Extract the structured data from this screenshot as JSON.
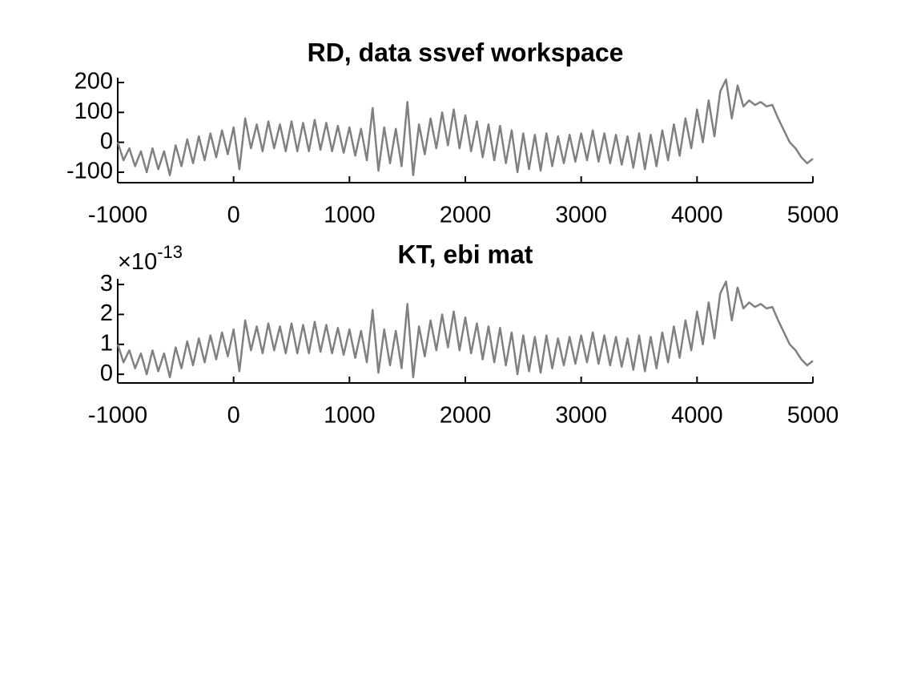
{
  "chart_data": [
    {
      "type": "line",
      "title": "RD, data ssvef workspace",
      "color": "#808080",
      "x": [
        -1000,
        -950,
        -900,
        -850,
        -800,
        -750,
        -700,
        -650,
        -600,
        -550,
        -500,
        -450,
        -400,
        -350,
        -300,
        -250,
        -200,
        -150,
        -100,
        -50,
        0,
        50,
        100,
        150,
        200,
        250,
        300,
        350,
        400,
        450,
        500,
        550,
        600,
        650,
        700,
        750,
        800,
        850,
        900,
        950,
        1000,
        1050,
        1100,
        1150,
        1200,
        1250,
        1300,
        1350,
        1400,
        1450,
        1500,
        1550,
        1600,
        1650,
        1700,
        1750,
        1800,
        1850,
        1900,
        1950,
        2000,
        2050,
        2100,
        2150,
        2200,
        2250,
        2300,
        2350,
        2400,
        2450,
        2500,
        2550,
        2600,
        2650,
        2700,
        2750,
        2800,
        2850,
        2900,
        2950,
        3000,
        3050,
        3100,
        3150,
        3200,
        3250,
        3300,
        3350,
        3400,
        3450,
        3500,
        3550,
        3600,
        3650,
        3700,
        3750,
        3800,
        3850,
        3900,
        3950,
        4000,
        4050,
        4100,
        4150,
        4200,
        4250,
        4300,
        4350,
        4400,
        4450,
        4500,
        4550,
        4600,
        4650,
        4700,
        4750,
        4800,
        4850,
        4900,
        4950,
        5000
      ],
      "values": [
        0,
        -60,
        -20,
        -80,
        -30,
        -100,
        -20,
        -90,
        -30,
        -110,
        -10,
        -80,
        10,
        -70,
        20,
        -60,
        30,
        -50,
        40,
        -40,
        50,
        -90,
        80,
        -20,
        60,
        -30,
        70,
        -20,
        60,
        -30,
        70,
        -30,
        65,
        -30,
        75,
        -25,
        65,
        -30,
        55,
        -35,
        50,
        -45,
        45,
        -60,
        115,
        -95,
        50,
        -70,
        45,
        -80,
        135,
        -110,
        60,
        -40,
        80,
        -20,
        100,
        -10,
        110,
        -20,
        90,
        -30,
        70,
        -50,
        60,
        -60,
        55,
        -70,
        40,
        -100,
        30,
        -90,
        25,
        -95,
        30,
        -80,
        20,
        -70,
        25,
        -65,
        30,
        -60,
        40,
        -65,
        30,
        -70,
        25,
        -75,
        20,
        -85,
        30,
        -90,
        25,
        -80,
        40,
        -60,
        60,
        -45,
        80,
        -20,
        110,
        0,
        140,
        20,
        170,
        210,
        80,
        190,
        120,
        140,
        125,
        135,
        120,
        125,
        80,
        40,
        0,
        -20,
        -50,
        -70,
        -55
      ],
      "xlim": [
        -1000,
        5000
      ],
      "xticks": [
        -1000,
        0,
        1000,
        2000,
        3000,
        4000,
        5000
      ],
      "ylim": [
        -135,
        216
      ],
      "yticks": [
        -100,
        0,
        100,
        200
      ]
    },
    {
      "type": "line",
      "title": "KT, ebi mat",
      "color": "#808080",
      "y_multiplier": {
        "base": "×10",
        "exponent": "-13"
      },
      "x": [
        -1000,
        -950,
        -900,
        -850,
        -800,
        -750,
        -700,
        -650,
        -600,
        -550,
        -500,
        -450,
        -400,
        -350,
        -300,
        -250,
        -200,
        -150,
        -100,
        -50,
        0,
        50,
        100,
        150,
        200,
        250,
        300,
        350,
        400,
        450,
        500,
        550,
        600,
        650,
        700,
        750,
        800,
        850,
        900,
        950,
        1000,
        1050,
        1100,
        1150,
        1200,
        1250,
        1300,
        1350,
        1400,
        1450,
        1500,
        1550,
        1600,
        1650,
        1700,
        1750,
        1800,
        1850,
        1900,
        1950,
        2000,
        2050,
        2100,
        2150,
        2200,
        2250,
        2300,
        2350,
        2400,
        2450,
        2500,
        2550,
        2600,
        2650,
        2700,
        2750,
        2800,
        2850,
        2900,
        2950,
        3000,
        3050,
        3100,
        3150,
        3200,
        3250,
        3300,
        3350,
        3400,
        3450,
        3500,
        3550,
        3600,
        3650,
        3700,
        3750,
        3800,
        3850,
        3900,
        3950,
        4000,
        4050,
        4100,
        4150,
        4200,
        4250,
        4300,
        4350,
        4400,
        4450,
        4500,
        4550,
        4600,
        4650,
        4700,
        4750,
        4800,
        4850,
        4900,
        4950,
        5000
      ],
      "values": [
        1,
        0.4,
        0.8,
        0.2,
        0.7,
        0,
        0.8,
        0.1,
        0.7,
        -0.1,
        0.9,
        0.2,
        1.1,
        0.3,
        1.2,
        0.4,
        1.3,
        0.5,
        1.4,
        0.6,
        1.5,
        0.1,
        1.8,
        0.8,
        1.6,
        0.7,
        1.7,
        0.8,
        1.6,
        0.7,
        1.7,
        0.7,
        1.65,
        0.7,
        1.75,
        0.75,
        1.65,
        0.7,
        1.55,
        0.65,
        1.5,
        0.55,
        1.45,
        0.4,
        2.15,
        0.05,
        1.5,
        0.3,
        1.45,
        0.2,
        2.35,
        -0.1,
        1.6,
        0.6,
        1.8,
        0.8,
        2,
        0.9,
        2.1,
        0.8,
        1.9,
        0.7,
        1.7,
        0.5,
        1.6,
        0.4,
        1.55,
        0.3,
        1.4,
        0,
        1.3,
        0.1,
        1.25,
        0.05,
        1.3,
        0.2,
        1.2,
        0.3,
        1.25,
        0.35,
        1.3,
        0.4,
        1.4,
        0.35,
        1.3,
        0.3,
        1.25,
        0.25,
        1.2,
        0.15,
        1.3,
        0.1,
        1.25,
        0.2,
        1.4,
        0.4,
        1.6,
        0.55,
        1.8,
        0.8,
        2.1,
        1,
        2.4,
        1.2,
        2.7,
        3.1,
        1.8,
        2.9,
        2.2,
        2.4,
        2.25,
        2.35,
        2.2,
        2.25,
        1.8,
        1.4,
        1,
        0.8,
        0.5,
        0.3,
        0.45
      ],
      "xlim": [
        -1000,
        5000
      ],
      "xticks": [
        -1000,
        0,
        1000,
        2000,
        3000,
        4000,
        5000
      ],
      "ylim": [
        -0.29,
        3.19
      ],
      "yticks": [
        0,
        1,
        2,
        3
      ]
    }
  ]
}
